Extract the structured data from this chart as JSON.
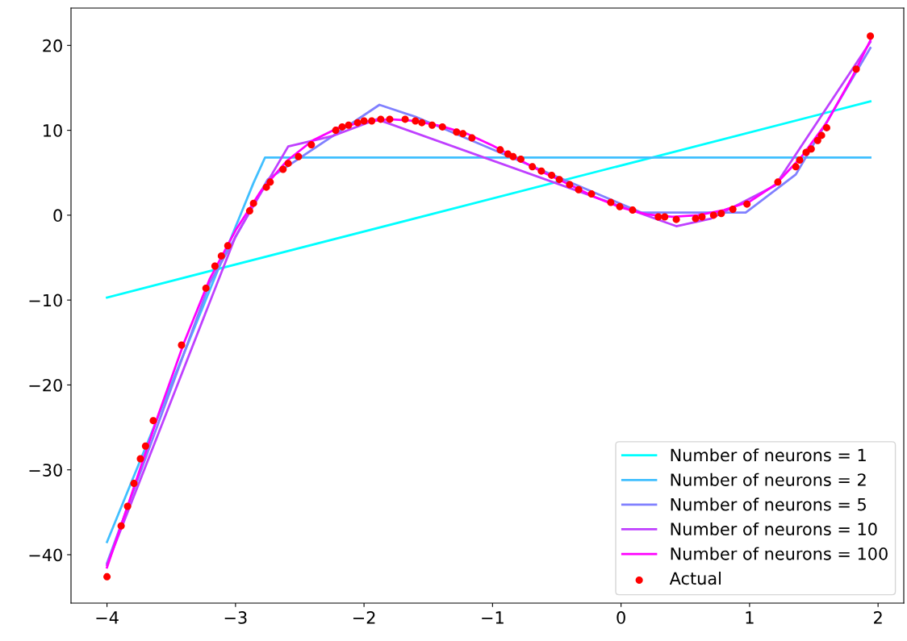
{
  "chart_data": {
    "type": "line",
    "xlim": [
      -4.28,
      2.2
    ],
    "ylim": [
      -45.7,
      24.4
    ],
    "xticks": [
      {
        "value": -4,
        "label": "−4"
      },
      {
        "value": -3,
        "label": "−3"
      },
      {
        "value": -2,
        "label": "−2"
      },
      {
        "value": -1,
        "label": "−1"
      },
      0,
      1,
      2
    ],
    "yticks": [
      {
        "value": -40,
        "label": "−40"
      },
      {
        "value": -30,
        "label": "−30"
      },
      {
        "value": -20,
        "label": "−20"
      },
      {
        "value": -10,
        "label": "−10"
      },
      0,
      10,
      20
    ],
    "grid": false,
    "legend": "bottom right",
    "series": [
      {
        "name": "Number of neurons = 1",
        "color": "#00ffff",
        "x": [
          -4,
          1.94
        ],
        "values": [
          -9.7,
          13.4
        ]
      },
      {
        "name": "Number of neurons = 2",
        "color": "#40bfff",
        "x": [
          -4,
          -2.86,
          -2.77,
          1.94
        ],
        "values": [
          -38.5,
          3.8,
          6.8,
          6.8
        ]
      },
      {
        "name": "Number of neurons = 5",
        "color": "#8080ff",
        "x": [
          -4,
          -3.2,
          -2.75,
          -1.88,
          -1.6,
          0.16,
          0.97,
          1.36,
          1.94
        ],
        "values": [
          -41,
          -8,
          4.2,
          13.0,
          11.6,
          0.3,
          0.3,
          4.8,
          19.7
        ]
      },
      {
        "name": "Number of neurons = 10",
        "color": "#bf40ff",
        "x": [
          -4,
          -3.0,
          -2.59,
          -2.25,
          -1.9,
          0.43,
          0.7,
          1.2,
          1.94
        ],
        "values": [
          -41.2,
          -2.5,
          8.1,
          9.3,
          11.3,
          -1.3,
          -0.4,
          3.5,
          20.4
        ]
      },
      {
        "name": "Number of neurons = 100",
        "color": "#ff00ff",
        "x": [
          -4,
          -3.8,
          -3.6,
          -3.4,
          -3.2,
          -3.0,
          -2.8,
          -2.6,
          -2.4,
          -2.2,
          -2.0,
          -1.8,
          -1.6,
          -1.4,
          -1.2,
          -1.0,
          -0.8,
          -0.6,
          -0.4,
          -0.2,
          0,
          0.2,
          0.4,
          0.6,
          0.8,
          1.0,
          1.2,
          1.4,
          1.6,
          1.8,
          1.94
        ],
        "values": [
          -41.5,
          -32.5,
          -23.5,
          -15,
          -7.5,
          -1.8,
          2.9,
          6.4,
          8.8,
          10.3,
          11.0,
          11.3,
          11.1,
          10.5,
          9.6,
          8.2,
          6.6,
          5.0,
          3.6,
          2.1,
          0.9,
          0.1,
          -0.2,
          0.0,
          0.6,
          1.6,
          3.6,
          6.8,
          10.9,
          16.3,
          20.6
        ]
      },
      {
        "name": "Actual",
        "type": "scatter",
        "marker": "circle",
        "color": "#ff0000",
        "x": [
          -4.0,
          -3.89,
          -3.84,
          -3.79,
          -3.74,
          -3.7,
          -3.64,
          -3.42,
          -3.23,
          -3.16,
          -3.11,
          -3.06,
          -2.89,
          -2.86,
          -2.76,
          -2.73,
          -2.63,
          -2.59,
          -2.51,
          -2.41,
          -2.22,
          -2.17,
          -2.12,
          -2.05,
          -2.0,
          -1.94,
          -1.87,
          -1.8,
          -1.68,
          -1.6,
          -1.55,
          -1.47,
          -1.39,
          -1.28,
          -1.23,
          -1.16,
          -0.94,
          -0.88,
          -0.84,
          -0.78,
          -0.69,
          -0.62,
          -0.54,
          -0.48,
          -0.4,
          -0.33,
          -0.23,
          -0.08,
          -0.01,
          0.09,
          0.29,
          0.34,
          0.43,
          0.58,
          0.63,
          0.72,
          0.78,
          0.87,
          0.98,
          1.22,
          1.36,
          1.39,
          1.44,
          1.48,
          1.53,
          1.56,
          1.6,
          1.83,
          1.94
        ],
        "values": [
          -42.6,
          -36.6,
          -34.3,
          -31.6,
          -28.7,
          -27.2,
          -24.2,
          -15.3,
          -8.6,
          -6.0,
          -4.8,
          -3.6,
          0.5,
          1.4,
          3.3,
          3.9,
          5.4,
          6.1,
          6.9,
          8.3,
          10.0,
          10.4,
          10.6,
          10.9,
          11.1,
          11.1,
          11.3,
          11.3,
          11.3,
          11.1,
          10.9,
          10.6,
          10.4,
          9.8,
          9.6,
          9.1,
          7.7,
          7.2,
          6.9,
          6.6,
          5.7,
          5.2,
          4.7,
          4.2,
          3.6,
          3.0,
          2.5,
          1.5,
          1.0,
          0.6,
          -0.2,
          -0.2,
          -0.5,
          -0.4,
          -0.2,
          0.0,
          0.2,
          0.7,
          1.3,
          3.9,
          5.7,
          6.5,
          7.4,
          7.8,
          8.8,
          9.4,
          10.3,
          17.2,
          21.1
        ]
      }
    ]
  }
}
